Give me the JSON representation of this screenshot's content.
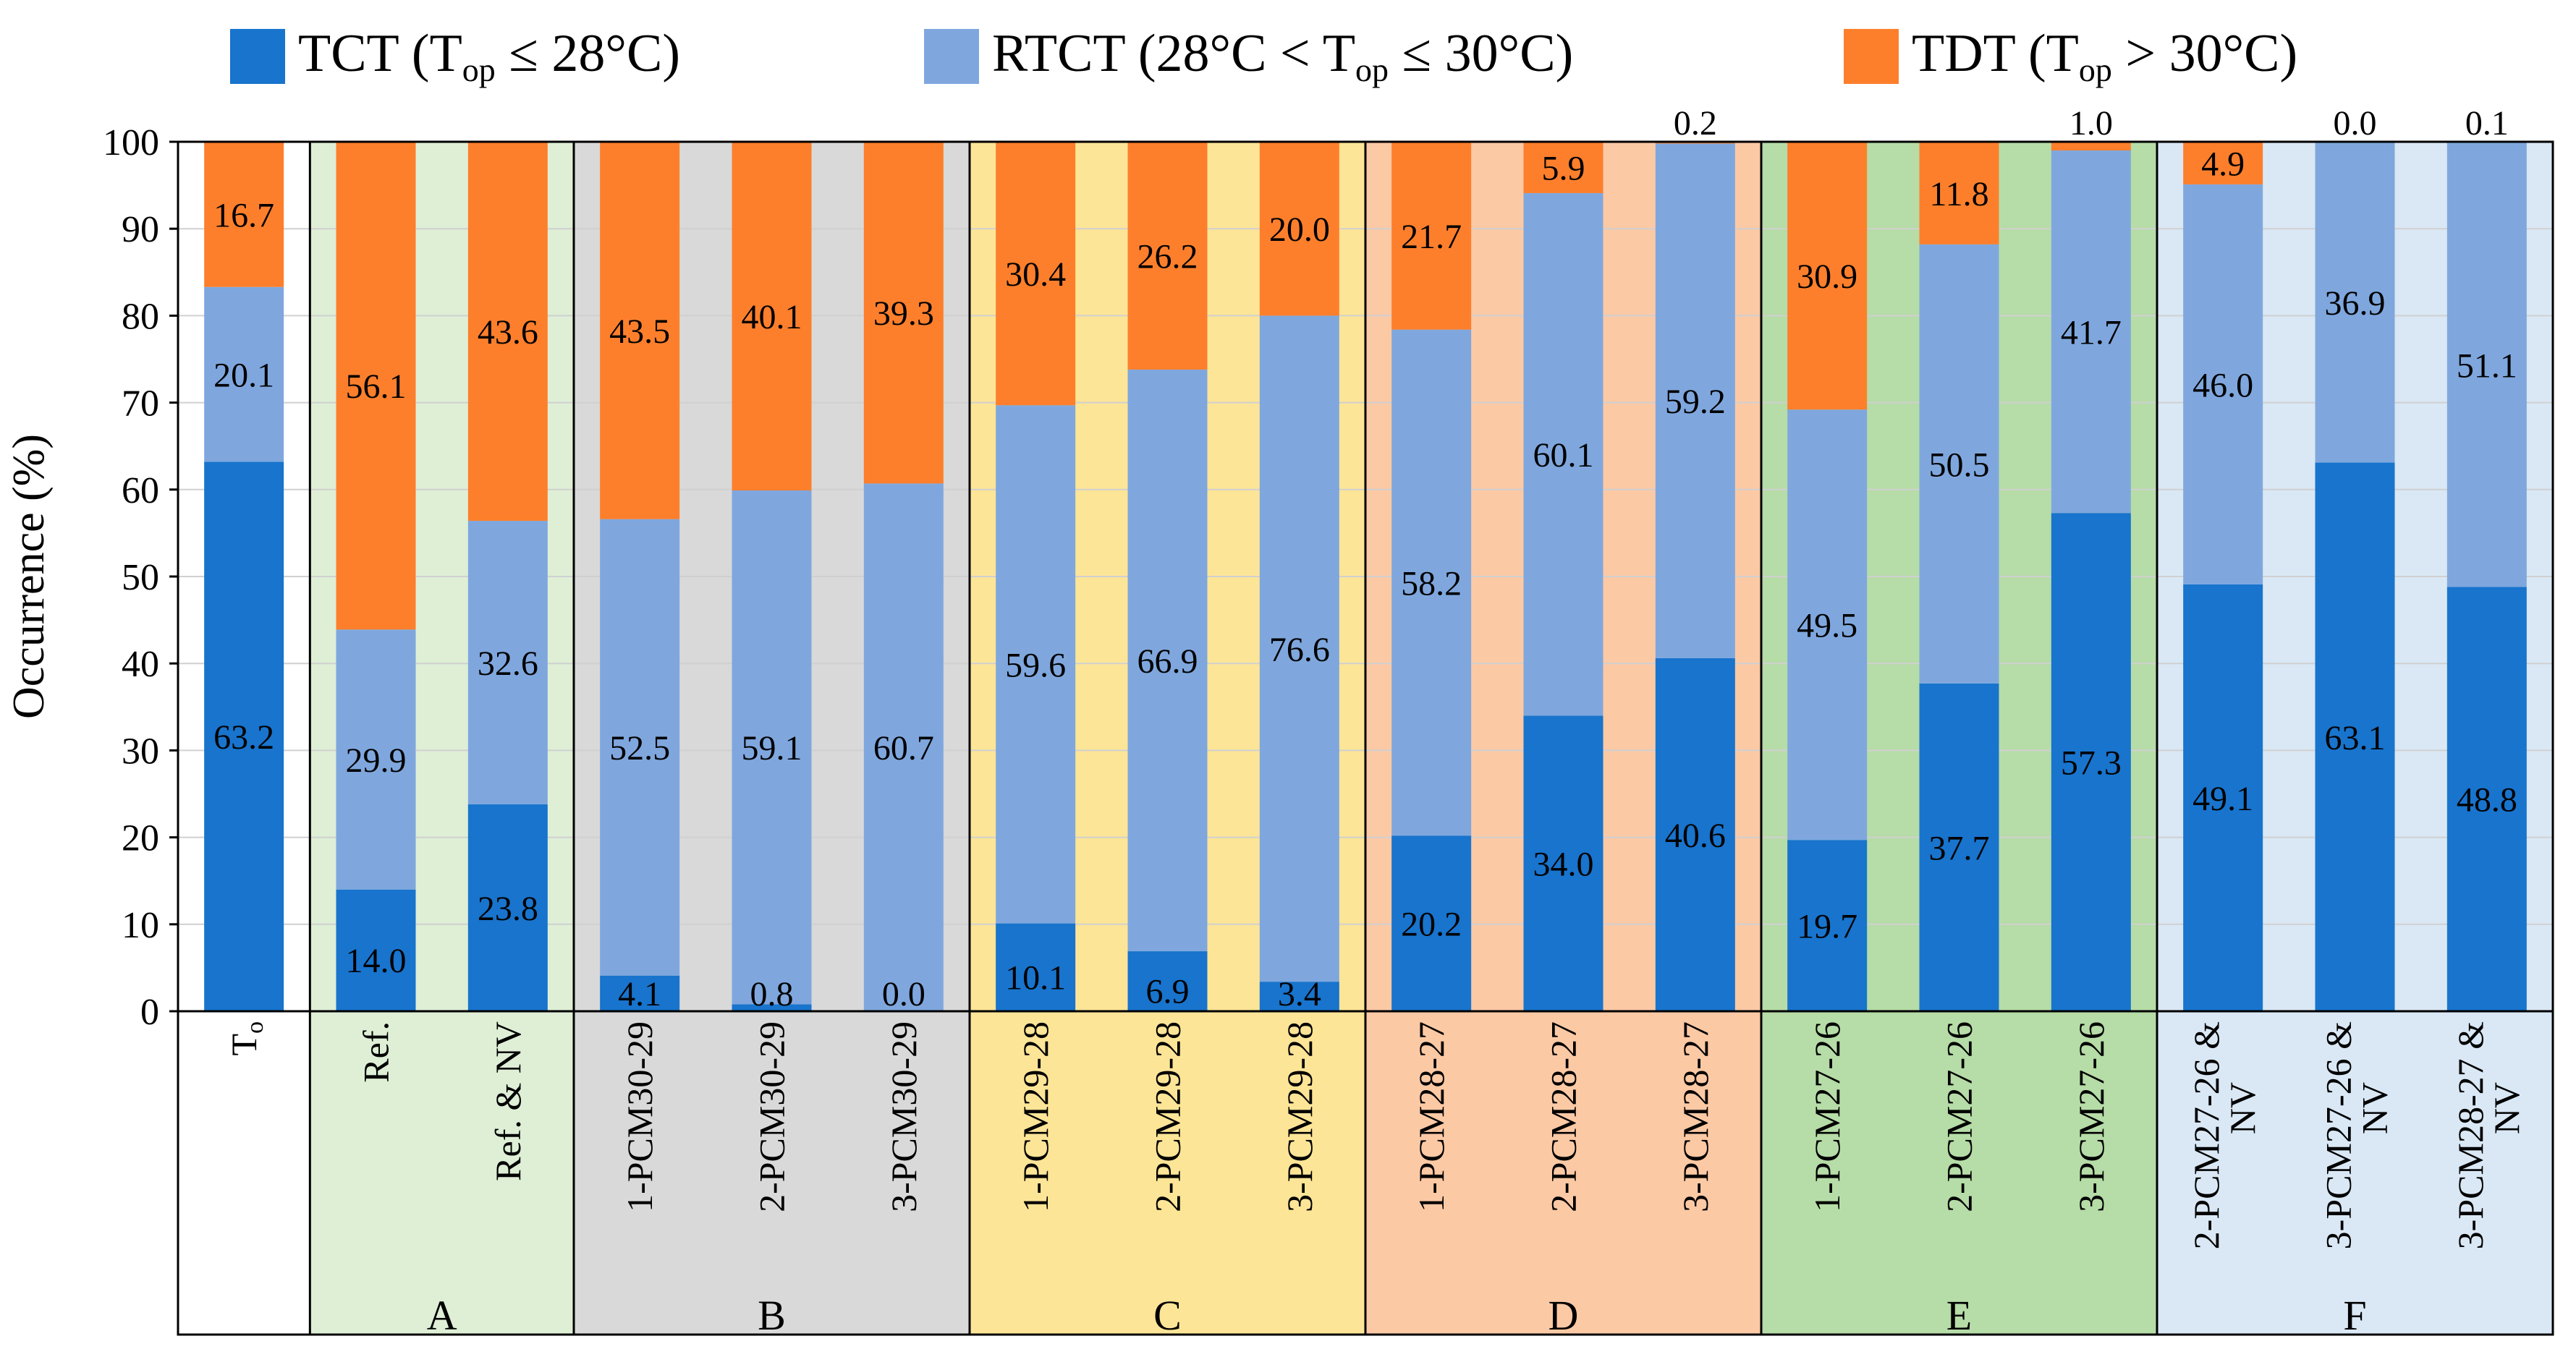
{
  "chart_data": {
    "type": "bar",
    "stacked": true,
    "ylabel": "Occurrence (%)",
    "ylim": [
      0,
      100
    ],
    "yticks": [
      0,
      10,
      20,
      30,
      40,
      50,
      60,
      70,
      80,
      90,
      100
    ],
    "legend": {
      "placement": "top",
      "entries": [
        {
          "name": "TCT",
          "main": "TCT (T",
          "sub": "op",
          "tail": " ≤ 28°C)"
        },
        {
          "name": "RTCT",
          "main": "RTCT (28°C < T",
          "sub": "op",
          "tail": " ≤ 30°C)"
        },
        {
          "name": "TDT",
          "main": "TDT (T",
          "sub": "op",
          "tail": " > 30°C)"
        }
      ]
    },
    "colors": {
      "TCT": "#1874cd",
      "RTCT": "#7fa7de",
      "TDT": "#fd7f2c"
    },
    "groups": [
      {
        "label": "",
        "background": "#ffffff",
        "categories": [
          {
            "name": "To",
            "main": "T",
            "sub": "o",
            "TCT": 63.2,
            "RTCT": 20.1,
            "TDT": 16.7
          }
        ]
      },
      {
        "label": "A",
        "background": "#deefd6",
        "categories": [
          {
            "name": "Ref.",
            "TCT": 14.0,
            "RTCT": 29.9,
            "TDT": 56.1
          },
          {
            "name": "Ref. & NV",
            "TCT": 23.8,
            "RTCT": 32.6,
            "TDT": 43.6
          }
        ]
      },
      {
        "label": "B",
        "background": "#d9d9d9",
        "categories": [
          {
            "name": "1-PCM30-29",
            "TCT": 4.1,
            "RTCT": 52.5,
            "TDT": 43.5
          },
          {
            "name": "2-PCM30-29",
            "TCT": 0.8,
            "RTCT": 59.1,
            "TDT": 40.1
          },
          {
            "name": "3-PCM30-29",
            "TCT": 0.0,
            "RTCT": 60.7,
            "TDT": 39.3
          }
        ]
      },
      {
        "label": "C",
        "background": "#fde597",
        "categories": [
          {
            "name": "1-PCM29-28",
            "TCT": 10.1,
            "RTCT": 59.6,
            "TDT": 30.4
          },
          {
            "name": "2-PCM29-28",
            "TCT": 6.9,
            "RTCT": 66.9,
            "TDT": 26.2
          },
          {
            "name": "3-PCM29-28",
            "TCT": 3.4,
            "RTCT": 76.6,
            "TDT": 20.0
          }
        ]
      },
      {
        "label": "D",
        "background": "#fcc9a5",
        "categories": [
          {
            "name": "1-PCM28-27",
            "TCT": 20.2,
            "RTCT": 58.2,
            "TDT": 21.7
          },
          {
            "name": "2-PCM28-27",
            "TCT": 34.0,
            "RTCT": 60.1,
            "TDT": 5.9
          },
          {
            "name": "3-PCM28-27",
            "TCT": 40.6,
            "RTCT": 59.2,
            "TDT": 0.2
          }
        ]
      },
      {
        "label": "E",
        "background": "#b6dca7",
        "categories": [
          {
            "name": "1-PCM27-26",
            "TCT": 19.7,
            "RTCT": 49.5,
            "TDT": 30.9
          },
          {
            "name": "2-PCM27-26",
            "TCT": 37.7,
            "RTCT": 50.5,
            "TDT": 11.8
          },
          {
            "name": "3-PCM27-26",
            "TCT": 57.3,
            "RTCT": 41.7,
            "TDT": 1.0
          }
        ]
      },
      {
        "label": "F",
        "background": "#dae8f5",
        "categories": [
          {
            "name": "2-PCM27-26 & NV",
            "line1": "2-PCM27-26 &",
            "line2": "NV",
            "TCT": 49.1,
            "RTCT": 46.0,
            "TDT": 4.9
          },
          {
            "name": "3-PCM27-26 & NV",
            "line1": "3-PCM27-26 &",
            "line2": "NV",
            "TCT": 63.1,
            "RTCT": 36.9,
            "TDT": 0.0
          },
          {
            "name": "3-PCM28-27 & NV",
            "line1": "3-PCM28-27 &",
            "line2": "NV",
            "TCT": 48.8,
            "RTCT": 51.1,
            "TDT": 0.1
          }
        ]
      }
    ]
  }
}
